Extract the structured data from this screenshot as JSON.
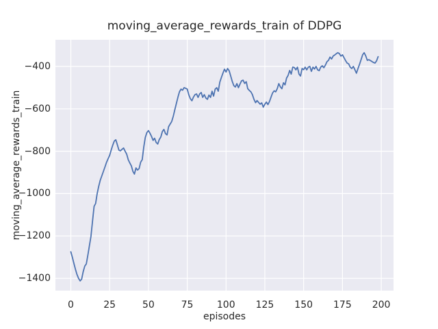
{
  "figure": {
    "title": "moving_average_rewards_train of DDPG",
    "xlabel": "episodes",
    "ylabel": "moving_average_rewards_train"
  },
  "chart_data": {
    "type": "line",
    "title": "moving_average_rewards_train of DDPG",
    "xlabel": "episodes",
    "ylabel": "moving_average_rewards_train",
    "style": "seaborn-darkgrid",
    "grid": true,
    "legend": "none",
    "xlim": [
      -9.9,
      207.9
    ],
    "ylim": [
      -1458,
      -274
    ],
    "x_ticks": [
      0,
      25,
      50,
      75,
      100,
      125,
      150,
      175,
      200
    ],
    "y_ticks": [
      -400,
      -600,
      -800,
      -1000,
      -1200,
      -1400
    ],
    "colors": {
      "line": "#4c72b0",
      "plot_background": "#eaeaf2",
      "grid": "#ffffff",
      "figure_background": "#ffffff",
      "text": "#262626"
    },
    "series": [
      {
        "name": "moving_average_rewards_train",
        "x_start": 0,
        "x_step": 1,
        "y": [
          -1275,
          -1300,
          -1330,
          -1358,
          -1382,
          -1400,
          -1412,
          -1404,
          -1368,
          -1342,
          -1332,
          -1290,
          -1245,
          -1202,
          -1130,
          -1060,
          -1047,
          -1000,
          -965,
          -937,
          -916,
          -895,
          -874,
          -853,
          -836,
          -820,
          -795,
          -772,
          -752,
          -746,
          -770,
          -795,
          -798,
          -791,
          -785,
          -800,
          -814,
          -840,
          -855,
          -869,
          -895,
          -908,
          -879,
          -889,
          -882,
          -852,
          -840,
          -780,
          -735,
          -712,
          -703,
          -715,
          -730,
          -749,
          -739,
          -759,
          -766,
          -745,
          -733,
          -707,
          -697,
          -717,
          -723,
          -685,
          -672,
          -660,
          -635,
          -605,
          -575,
          -545,
          -520,
          -507,
          -512,
          -500,
          -503,
          -507,
          -533,
          -552,
          -562,
          -545,
          -533,
          -530,
          -546,
          -530,
          -523,
          -546,
          -533,
          -549,
          -555,
          -535,
          -546,
          -517,
          -540,
          -507,
          -500,
          -517,
          -474,
          -452,
          -432,
          -413,
          -426,
          -410,
          -420,
          -445,
          -470,
          -490,
          -497,
          -481,
          -500,
          -483,
          -468,
          -465,
          -480,
          -472,
          -505,
          -513,
          -520,
          -533,
          -555,
          -571,
          -561,
          -570,
          -578,
          -572,
          -592,
          -578,
          -568,
          -580,
          -565,
          -545,
          -525,
          -515,
          -520,
          -505,
          -481,
          -497,
          -505,
          -477,
          -487,
          -455,
          -442,
          -419,
          -436,
          -403,
          -405,
          -416,
          -403,
          -436,
          -445,
          -410,
          -415,
          -403,
          -416,
          -403,
          -400,
          -423,
          -403,
          -412,
          -400,
          -416,
          -420,
          -403,
          -397,
          -406,
          -394,
          -378,
          -371,
          -356,
          -365,
          -351,
          -346,
          -340,
          -335,
          -339,
          -351,
          -345,
          -358,
          -372,
          -384,
          -388,
          -403,
          -410,
          -400,
          -415,
          -432,
          -410,
          -390,
          -368,
          -345,
          -335,
          -350,
          -371,
          -368,
          -372,
          -377,
          -381,
          -384,
          -373,
          -354
        ]
      }
    ]
  }
}
